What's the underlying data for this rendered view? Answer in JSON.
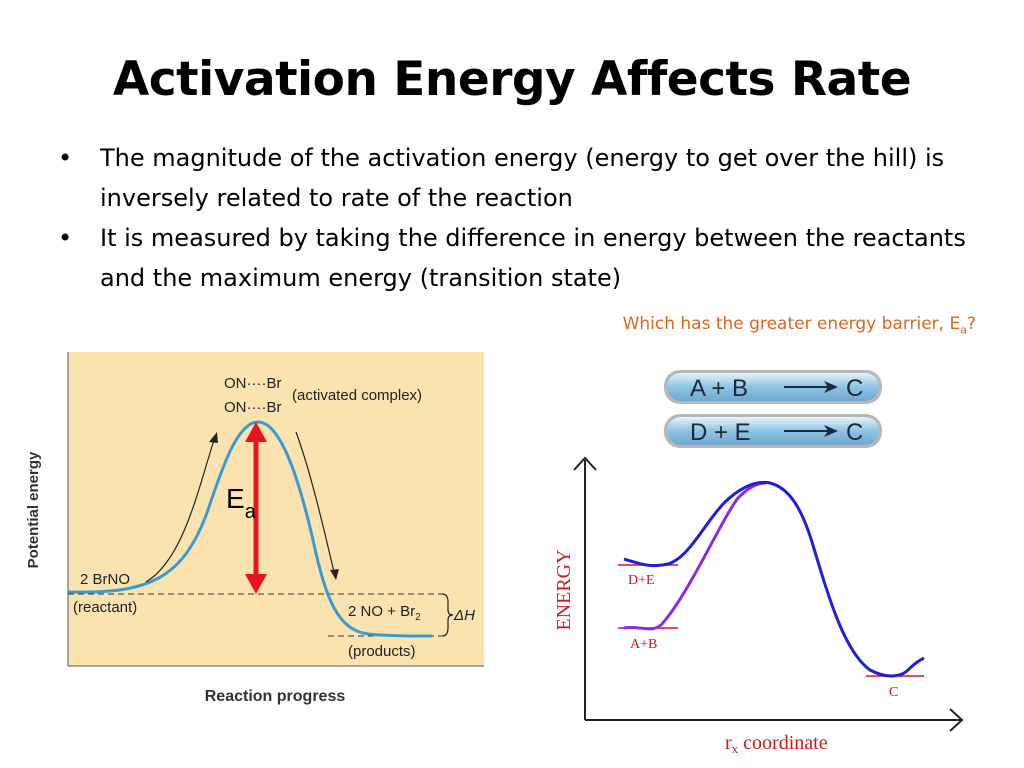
{
  "title": "Activation Energy Affects Rate",
  "bullets": [
    "The magnitude of the activation energy (energy to get over the hill) is inversely related to rate of the reaction",
    "It is measured by taking the difference in energy between the reactants and the maximum energy (transition state)"
  ],
  "question": {
    "text": "Which has the greater energy barrier, E",
    "sub": "a",
    "end": "?"
  },
  "left_diagram": {
    "y_axis_label": "Potential energy",
    "x_axis_label": "Reaction progress",
    "complex_line1": "ON····Br",
    "complex_line2": "ON····Br",
    "complex_label": "(activated complex)",
    "reactant_formula": "2 BrNO",
    "reactant_label": "(reactant)",
    "product_formula": "2 NO + Br",
    "product_sub": "2",
    "product_label": "(products)",
    "delta_h": "ΔH",
    "ea_main": "E",
    "ea_sub": "a",
    "colors": {
      "background": "#fbe3b0",
      "curve": "#3a9bd0",
      "arrow": "#e8161b"
    }
  },
  "right_diagram": {
    "reaction_1": {
      "left": "A + B",
      "right": "C"
    },
    "reaction_2": {
      "left": "D + E",
      "right": "C"
    },
    "y_axis_label": "ENERGY",
    "x_axis_label_main": "r",
    "x_axis_label_sub": "x",
    "x_axis_label_rest": " coordinate",
    "level_de": "D+E",
    "level_ab": "A+B",
    "level_c": "C",
    "colors": {
      "curve_de": "#1f1fd6",
      "curve_ab": "#8a2be2",
      "labels": "#d01a1a",
      "pill": "#8ec3e3"
    }
  }
}
